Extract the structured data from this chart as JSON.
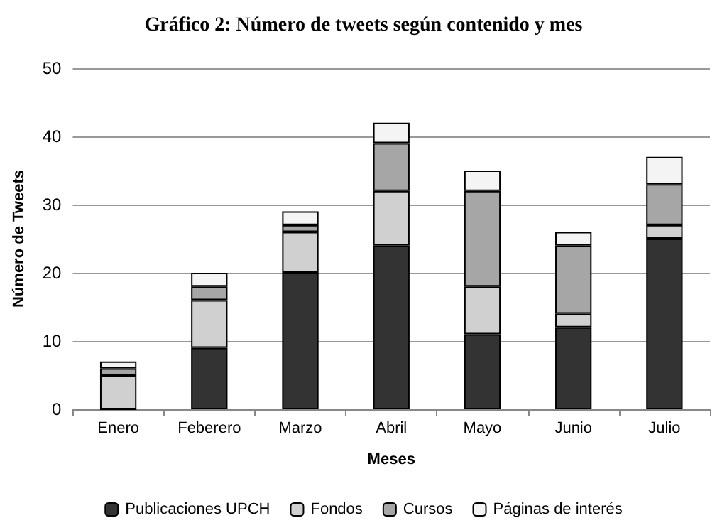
{
  "chart_data": {
    "type": "bar",
    "stacked": true,
    "title": "Gráfico 2: Número de tweets según contenido y mes",
    "xlabel": "Meses",
    "ylabel": "Número de Tweets",
    "categories": [
      "Enero",
      "Feberero",
      "Marzo",
      "Abril",
      "Mayo",
      "Junio",
      "Julio"
    ],
    "series": [
      {
        "name": "Publicaciones UPCH",
        "color": "#333333",
        "values": [
          0,
          9,
          20,
          24,
          11,
          12,
          25
        ]
      },
      {
        "name": "Fondos",
        "color": "#d0d0d0",
        "values": [
          5,
          7,
          6,
          8,
          7,
          2,
          2
        ]
      },
      {
        "name": "Cursos",
        "color": "#a6a6a6",
        "values": [
          1,
          2,
          1,
          7,
          14,
          10,
          6
        ]
      },
      {
        "name": "Páginas de interés",
        "color": "#f4f4f4",
        "values": [
          1,
          2,
          2,
          3,
          3,
          2,
          4
        ]
      }
    ],
    "ylim": [
      0,
      50
    ],
    "yticks": [
      0,
      10,
      20,
      30,
      40,
      50
    ],
    "grid": "y",
    "legend": "bottom"
  }
}
